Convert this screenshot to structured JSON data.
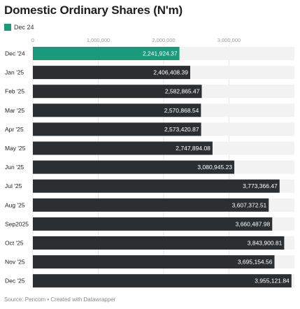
{
  "title": "Domestic Ordinary Shares (N'm)",
  "legend": {
    "label": "Dec 24"
  },
  "source": "Source: Pencom • Created with Datawrapper",
  "colors": {
    "highlight": "#1a9a7b",
    "bar": "#2c2f31",
    "track": "#f2f2f2",
    "grid": "#d8d8d8",
    "tick_text": "#999999",
    "label_text": "#222222"
  },
  "chart_data": {
    "type": "bar",
    "orientation": "horizontal",
    "title": "Domestic Ordinary Shares (N'm)",
    "xlim": [
      0,
      4000000
    ],
    "x_ticks": [
      0,
      1000000,
      2000000,
      3000000
    ],
    "x_tick_labels": [
      "0",
      "1,000,000",
      "2,000,000",
      "3,000,000"
    ],
    "grid": true,
    "legend_position": "top-left",
    "highlight_index": 0,
    "categories": [
      "Dec '24",
      "Jan '25",
      "Feb '25",
      "Mar '25",
      "Apr '25",
      "May '25",
      "Jun '25",
      "Jul '25",
      "Aug '25",
      "Sep2025",
      "Oct '25",
      "Nov '25",
      "Dec '25"
    ],
    "values": [
      2241924.37,
      2406408.39,
      2582865.47,
      2570868.54,
      2573420.87,
      2747894.08,
      3080945.23,
      3773366.47,
      3607372.51,
      3660487.98,
      3843900.81,
      3695154.56,
      3955121.84
    ],
    "value_labels": [
      "2,241,924.37",
      "2,406,408.39",
      "2,582,865.47",
      "2,570,868.54",
      "2,573,420.87",
      "2,747,894.08",
      "3,080,945.23",
      "3,773,366.47",
      "3,607,372.51",
      "3,660,487.98",
      "3,843,900.81",
      "3,695,154.56",
      "3,955,121.84"
    ]
  }
}
